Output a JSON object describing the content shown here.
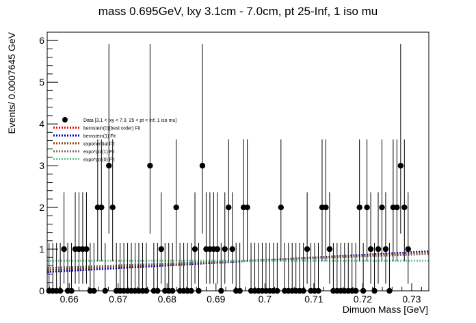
{
  "chart_data": {
    "type": "scatter",
    "title": "mass 0.695GeV, lxy 3.1cm - 7.0cm, pt 25-Inf, 1 iso mu",
    "xlabel": "Dimuon Mass [GeV]",
    "ylabel": "Events/ 0.0007645 GeV",
    "xlim": [
      0.6555,
      0.7335
    ],
    "ylim": [
      0,
      6.2
    ],
    "xticks": [
      0.66,
      0.67,
      0.68,
      0.69,
      0.7,
      0.71,
      0.72,
      0.73
    ],
    "xtick_labels": [
      "0.66",
      "0.67",
      "0.68",
      "0.69",
      "0.7",
      "0.71",
      "0.72",
      "0.73"
    ],
    "yticks": [
      0,
      1,
      2,
      3,
      4,
      5,
      6
    ],
    "ytick_labels": [
      "0",
      "1",
      "2",
      "3",
      "4",
      "5",
      "6"
    ],
    "bin_width": 0.0007645,
    "data_name": "Data [3.1 < lxy < 7.0, 25 < pt < Inf, 1 iso mu]",
    "counts": [
      0,
      0,
      0,
      0,
      1,
      0,
      0,
      1,
      1,
      1,
      1,
      0,
      0,
      2,
      2,
      0,
      3,
      2,
      0,
      0,
      0,
      0,
      0,
      0,
      0,
      0,
      0,
      3,
      0,
      0,
      1,
      0,
      0,
      0,
      2,
      0,
      0,
      0,
      0,
      1,
      0,
      3,
      1,
      1,
      1,
      1,
      0,
      1,
      2,
      1,
      0,
      0,
      2,
      2,
      0,
      0,
      0,
      0,
      0,
      0,
      0,
      0,
      2,
      0,
      0,
      0,
      0,
      0,
      0,
      1,
      0,
      0,
      0,
      2,
      2,
      1,
      0,
      0,
      0,
      0,
      0,
      0,
      0,
      2,
      0,
      2,
      1,
      0,
      1,
      2,
      1,
      0,
      2,
      2,
      3,
      2,
      1
    ],
    "series": [
      {
        "name": "bernstein(0)(best order) Fit",
        "color": "#ff0000",
        "style": "dotted",
        "y_start": 0.72,
        "y_end": 0.72
      },
      {
        "name": "bernstein(1) Fit",
        "color": "#0000cc",
        "style": "dotted",
        "y_start": 0.45,
        "y_end": 0.95
      },
      {
        "name": "exponential Fit",
        "color": "#8b4513",
        "style": "dotted",
        "y_start": 0.5,
        "y_end": 0.92
      },
      {
        "name": "expo*pol(1) Fit",
        "color": "#7a6a6a",
        "style": "dotted",
        "y_start": 0.55,
        "y_end": 0.88
      },
      {
        "name": "expo*pol(0) Fit",
        "color": "#66cc99",
        "style": "dotted",
        "y_start": 0.72,
        "y_end": 0.72
      }
    ],
    "legend_position": "upper-left"
  }
}
